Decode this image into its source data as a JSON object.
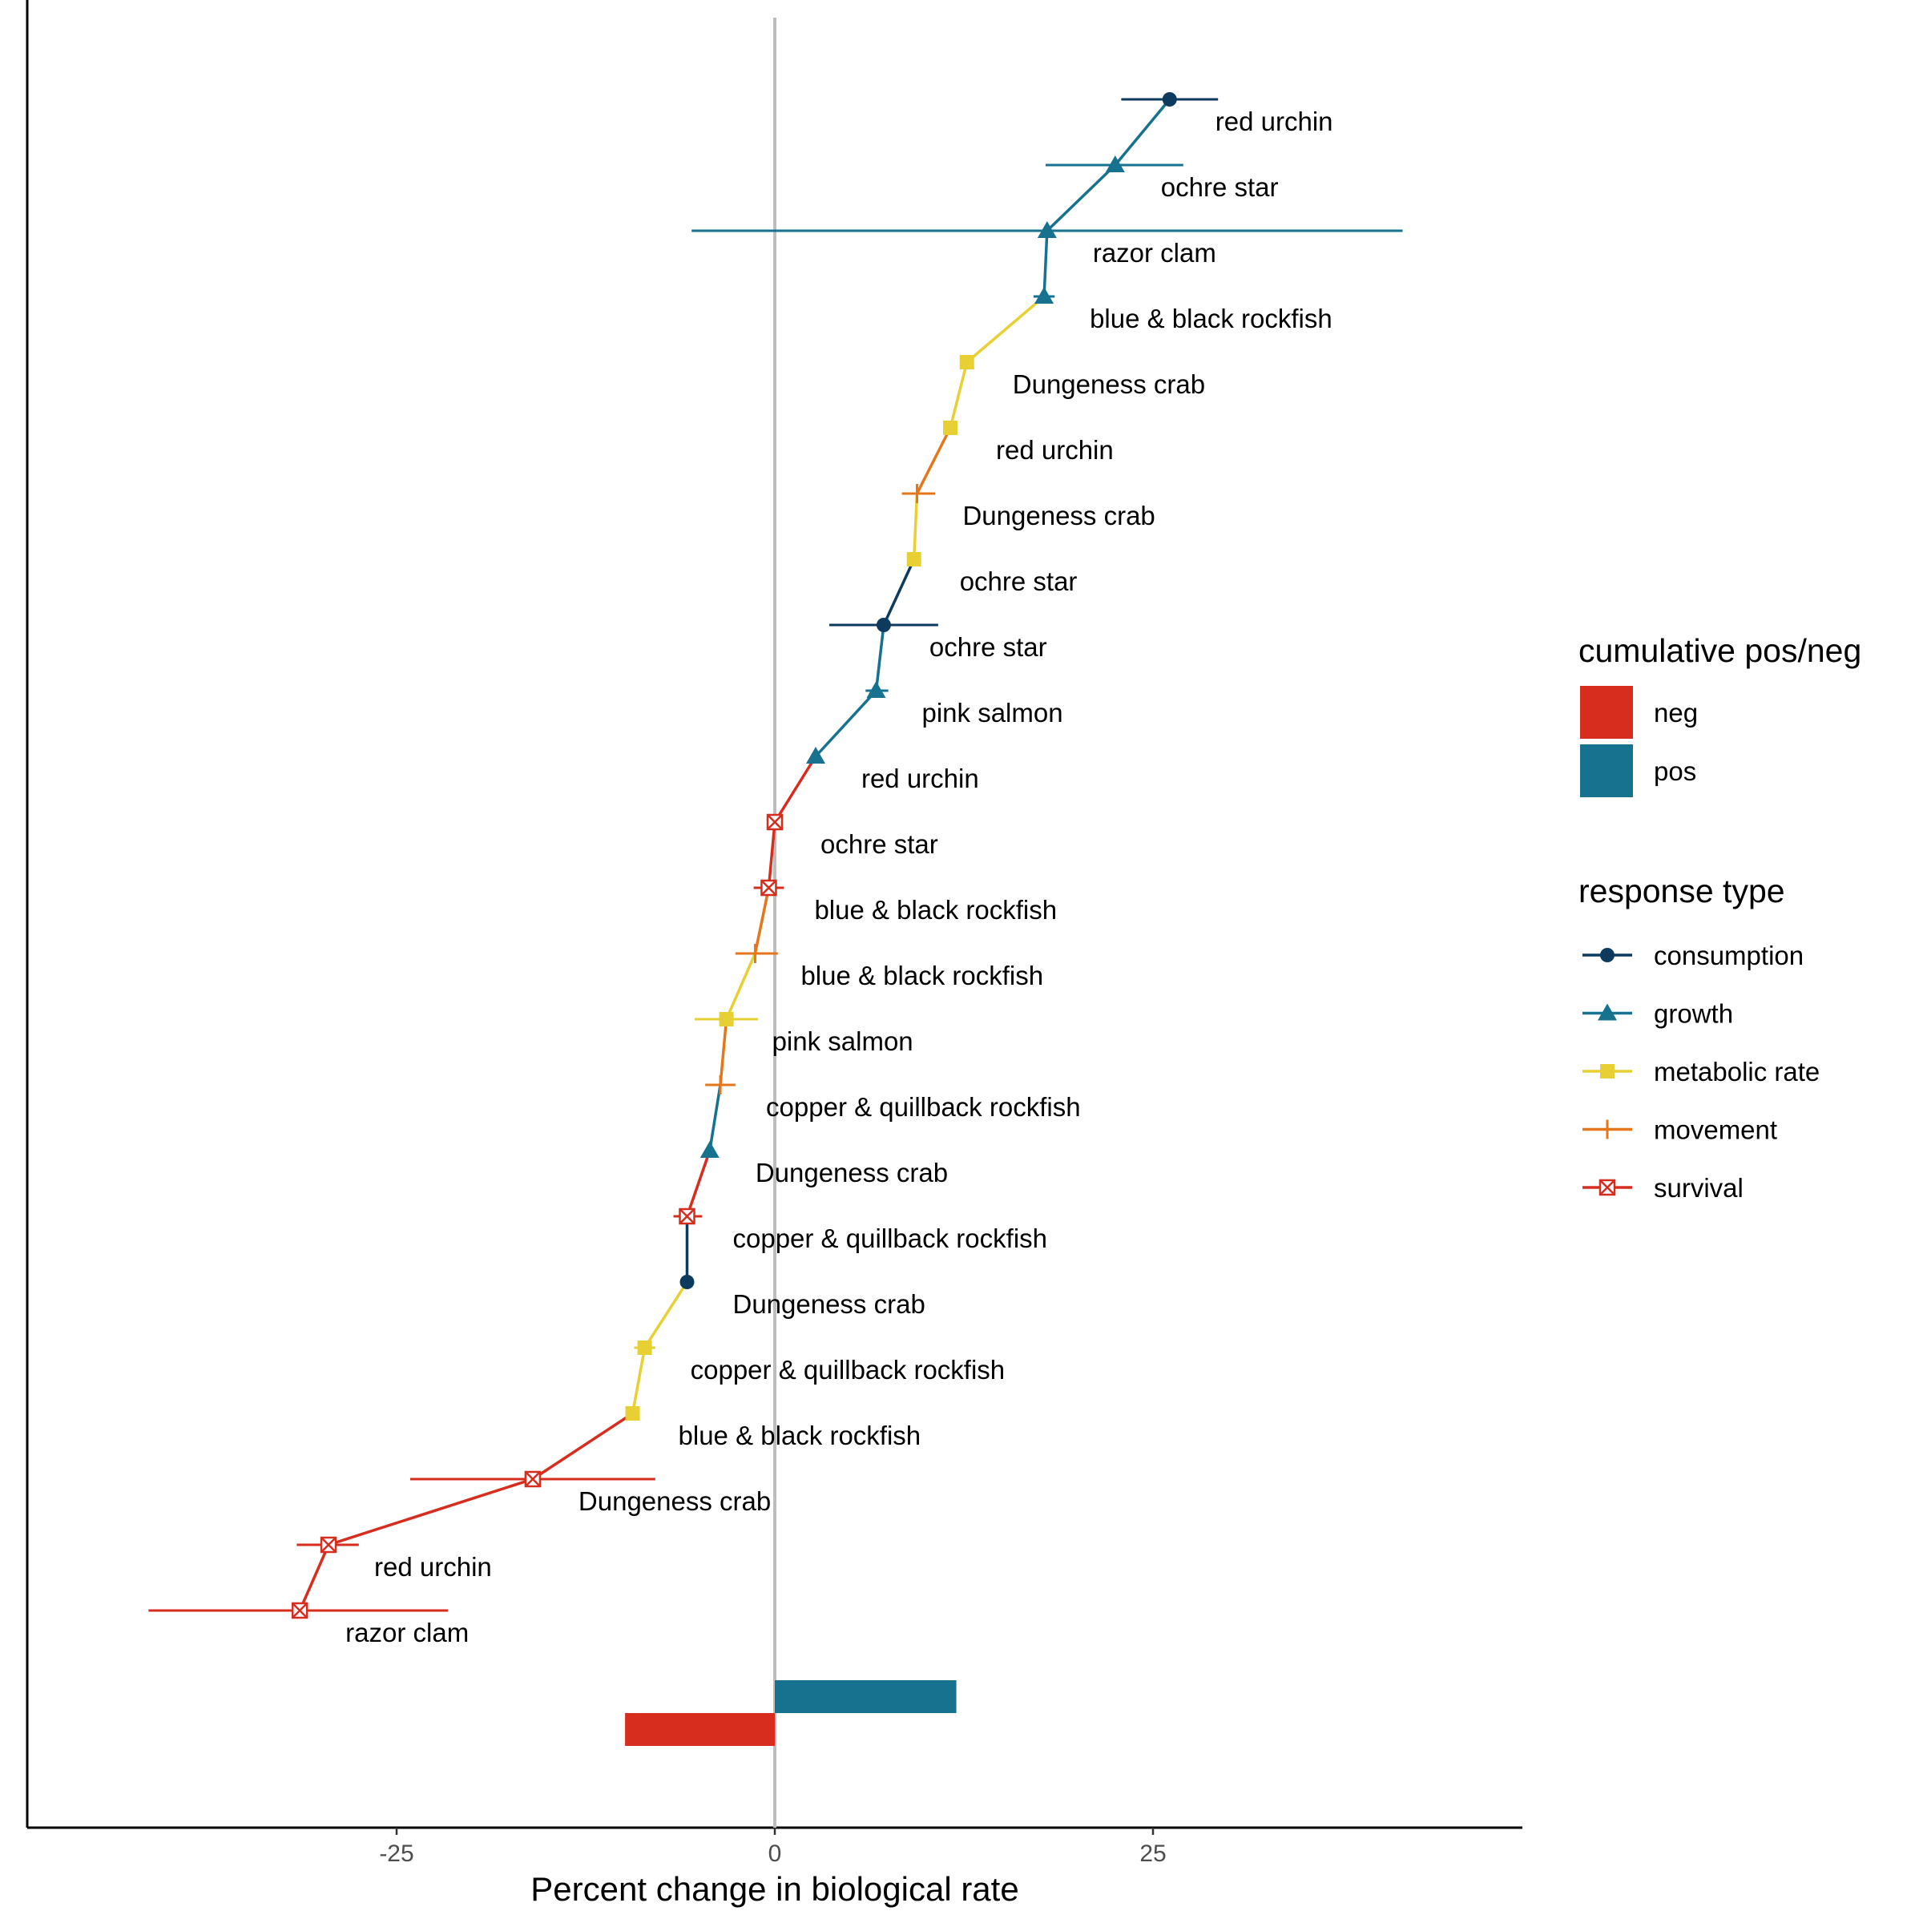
{
  "chart_data": {
    "type": "scatter",
    "xlabel": "Percent change in biological rate",
    "xlim": [
      -49,
      49
    ],
    "xticks": [
      -25,
      0,
      25
    ],
    "grid": false,
    "legend_position": "right",
    "points": [
      {
        "label": "red urchin",
        "type": "consumption",
        "x": 26.1,
        "lo": 22.9,
        "hi": 29.3
      },
      {
        "label": "ochre star",
        "type": "growth",
        "x": 22.5,
        "lo": 17.9,
        "hi": 27.0
      },
      {
        "label": "razor clam",
        "type": "growth",
        "x": 18.0,
        "lo": -5.5,
        "hi": 41.5
      },
      {
        "label": "blue & black rockfish",
        "type": "growth",
        "x": 17.8,
        "lo": 17.1,
        "hi": 18.5
      },
      {
        "label": "Dungeness crab",
        "type": "metabolic rate",
        "x": 12.7,
        "lo": 12.7,
        "hi": 12.7
      },
      {
        "label": "red urchin",
        "type": "metabolic rate",
        "x": 11.6,
        "lo": 11.6,
        "hi": 11.6
      },
      {
        "label": "Dungeness crab",
        "type": "movement",
        "x": 9.4,
        "lo": 8.4,
        "hi": 10.6
      },
      {
        "label": "ochre star",
        "type": "metabolic rate",
        "x": 9.2,
        "lo": 9.2,
        "hi": 9.2
      },
      {
        "label": "ochre star",
        "type": "consumption",
        "x": 7.2,
        "lo": 3.6,
        "hi": 10.8
      },
      {
        "label": "pink salmon",
        "type": "growth",
        "x": 6.7,
        "lo": 6.0,
        "hi": 7.5
      },
      {
        "label": "red urchin",
        "type": "growth",
        "x": 2.7,
        "lo": 2.7,
        "hi": 2.7
      },
      {
        "label": "ochre star",
        "type": "survival",
        "x": 0.0,
        "lo": 0.0,
        "hi": 0.0
      },
      {
        "label": "blue & black rockfish",
        "type": "survival",
        "x": -0.4,
        "lo": -1.4,
        "hi": 0.6
      },
      {
        "label": "blue & black rockfish",
        "type": "movement",
        "x": -1.3,
        "lo": -2.6,
        "hi": 0.2
      },
      {
        "label": "pink salmon",
        "type": "metabolic rate",
        "x": -3.2,
        "lo": -5.3,
        "hi": -1.1
      },
      {
        "label": "copper & quillback rockfish",
        "type": "movement",
        "x": -3.6,
        "lo": -4.6,
        "hi": -2.6
      },
      {
        "label": "Dungeness crab",
        "type": "growth",
        "x": -4.3,
        "lo": -4.3,
        "hi": -4.3
      },
      {
        "label": "copper & quillback rockfish",
        "type": "survival",
        "x": -5.8,
        "lo": -6.7,
        "hi": -4.8
      },
      {
        "label": "Dungeness crab",
        "type": "consumption",
        "x": -5.8,
        "lo": -5.8,
        "hi": -5.8
      },
      {
        "label": "copper & quillback rockfish",
        "type": "metabolic rate",
        "x": -8.6,
        "lo": -9.3,
        "hi": -7.9
      },
      {
        "label": "blue & black rockfish",
        "type": "metabolic rate",
        "x": -9.4,
        "lo": -9.4,
        "hi": -9.4
      },
      {
        "label": "Dungeness crab",
        "type": "survival",
        "x": -16.0,
        "lo": -24.1,
        "hi": -7.9
      },
      {
        "label": "red urchin",
        "type": "survival",
        "x": -29.5,
        "lo": -31.6,
        "hi": -27.5
      },
      {
        "label": "razor clam",
        "type": "survival",
        "x": -31.4,
        "lo": -41.4,
        "hi": -21.6
      }
    ],
    "cumulative_bars": [
      {
        "category": "pos",
        "value": 12.0
      },
      {
        "category": "neg",
        "value": -9.9
      }
    ],
    "legends": {
      "cumulative": {
        "title": "cumulative pos/neg",
        "items": [
          {
            "name": "neg",
            "color": "#d62d1f"
          },
          {
            "name": "pos",
            "color": "#16728f"
          }
        ]
      },
      "response": {
        "title": "response type",
        "items": [
          {
            "name": "consumption",
            "color": "#0e3a5e",
            "shape": "circle"
          },
          {
            "name": "growth",
            "color": "#16728f",
            "shape": "triangle"
          },
          {
            "name": "metabolic rate",
            "color": "#e8d034",
            "shape": "square"
          },
          {
            "name": "movement",
            "color": "#e6761b",
            "shape": "plus"
          },
          {
            "name": "survival",
            "color": "#d62d1f",
            "shape": "boxx"
          }
        ]
      }
    }
  }
}
